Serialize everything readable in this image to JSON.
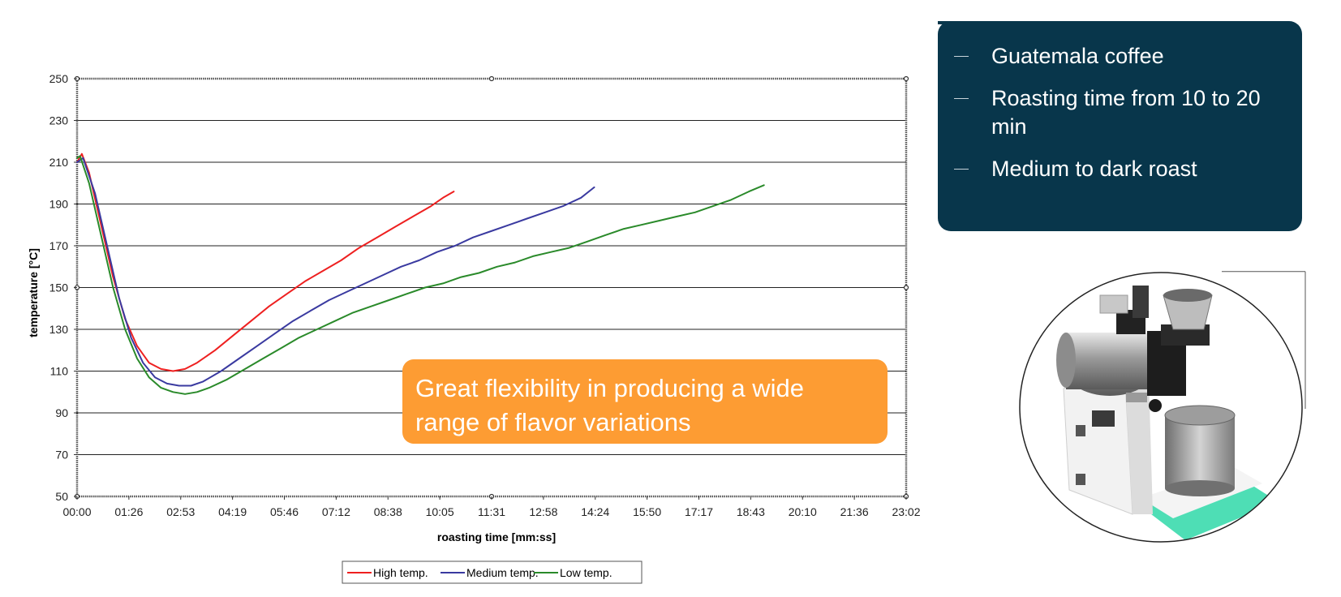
{
  "info_panel": {
    "bullets": [
      "Guatemala coffee",
      "Roasting time from 10 to 20 min",
      "Medium to dark roast"
    ]
  },
  "callout": {
    "text": "Great flexibility in producing a wide range of flavor variations"
  },
  "chart_data": {
    "type": "line",
    "title": "",
    "xlabel": "roasting time [mm:ss]",
    "ylabel": "temperature [°C]",
    "xlim": [
      0,
      1382
    ],
    "ylim": [
      50,
      250
    ],
    "grid": "horizontal",
    "x_tick_labels": [
      "00:00",
      "01:26",
      "02:53",
      "04:19",
      "05:46",
      "07:12",
      "08:38",
      "10:05",
      "11:31",
      "12:58",
      "14:24",
      "15:50",
      "17:17",
      "18:43",
      "20:10",
      "21:36",
      "23:02"
    ],
    "y_ticks": [
      50,
      70,
      90,
      110,
      130,
      150,
      170,
      190,
      210,
      230,
      250
    ],
    "legend_position": "bottom-center",
    "series": [
      {
        "name": "High temp.",
        "color": "#ee2020",
        "points": [
          [
            0,
            210
          ],
          [
            8,
            214
          ],
          [
            20,
            205
          ],
          [
            40,
            180
          ],
          [
            60,
            155
          ],
          [
            80,
            135
          ],
          [
            100,
            122
          ],
          [
            120,
            114
          ],
          [
            140,
            111
          ],
          [
            160,
            110
          ],
          [
            180,
            111
          ],
          [
            200,
            114
          ],
          [
            230,
            120
          ],
          [
            260,
            127
          ],
          [
            290,
            134
          ],
          [
            320,
            141
          ],
          [
            350,
            147
          ],
          [
            380,
            153
          ],
          [
            410,
            158
          ],
          [
            440,
            163
          ],
          [
            470,
            169
          ],
          [
            500,
            174
          ],
          [
            530,
            179
          ],
          [
            560,
            184
          ],
          [
            590,
            189
          ],
          [
            610,
            193
          ],
          [
            628,
            196
          ]
        ]
      },
      {
        "name": "Medium temp.",
        "color": "#3a3aa0",
        "points": [
          [
            0,
            210
          ],
          [
            10,
            212
          ],
          [
            30,
            195
          ],
          [
            50,
            170
          ],
          [
            70,
            145
          ],
          [
            90,
            126
          ],
          [
            110,
            114
          ],
          [
            130,
            107
          ],
          [
            150,
            104
          ],
          [
            170,
            103
          ],
          [
            190,
            103
          ],
          [
            210,
            105
          ],
          [
            240,
            110
          ],
          [
            270,
            116
          ],
          [
            300,
            122
          ],
          [
            330,
            128
          ],
          [
            360,
            134
          ],
          [
            390,
            139
          ],
          [
            420,
            144
          ],
          [
            450,
            148
          ],
          [
            480,
            152
          ],
          [
            510,
            156
          ],
          [
            540,
            160
          ],
          [
            570,
            163
          ],
          [
            600,
            167
          ],
          [
            630,
            170
          ],
          [
            660,
            174
          ],
          [
            690,
            177
          ],
          [
            720,
            180
          ],
          [
            750,
            183
          ],
          [
            780,
            186
          ],
          [
            810,
            189
          ],
          [
            840,
            193
          ],
          [
            862,
            198
          ]
        ]
      },
      {
        "name": "Low temp.",
        "color": "#2a8a2a",
        "points": [
          [
            0,
            212
          ],
          [
            5,
            213
          ],
          [
            20,
            200
          ],
          [
            40,
            175
          ],
          [
            60,
            150
          ],
          [
            80,
            130
          ],
          [
            100,
            116
          ],
          [
            120,
            107
          ],
          [
            140,
            102
          ],
          [
            160,
            100
          ],
          [
            180,
            99
          ],
          [
            200,
            100
          ],
          [
            220,
            102
          ],
          [
            250,
            106
          ],
          [
            280,
            111
          ],
          [
            310,
            116
          ],
          [
            340,
            121
          ],
          [
            370,
            126
          ],
          [
            400,
            130
          ],
          [
            430,
            134
          ],
          [
            460,
            138
          ],
          [
            490,
            141
          ],
          [
            520,
            144
          ],
          [
            550,
            147
          ],
          [
            580,
            150
          ],
          [
            610,
            152
          ],
          [
            640,
            155
          ],
          [
            670,
            157
          ],
          [
            700,
            160
          ],
          [
            730,
            162
          ],
          [
            760,
            165
          ],
          [
            790,
            167
          ],
          [
            820,
            169
          ],
          [
            850,
            172
          ],
          [
            880,
            175
          ],
          [
            910,
            178
          ],
          [
            940,
            180
          ],
          [
            970,
            182
          ],
          [
            1000,
            184
          ],
          [
            1030,
            186
          ],
          [
            1060,
            189
          ],
          [
            1090,
            192
          ],
          [
            1120,
            196
          ],
          [
            1145,
            199
          ]
        ]
      }
    ]
  },
  "colors": {
    "panel_bg": "#08364b",
    "callout_bg": "#fd9c33"
  }
}
